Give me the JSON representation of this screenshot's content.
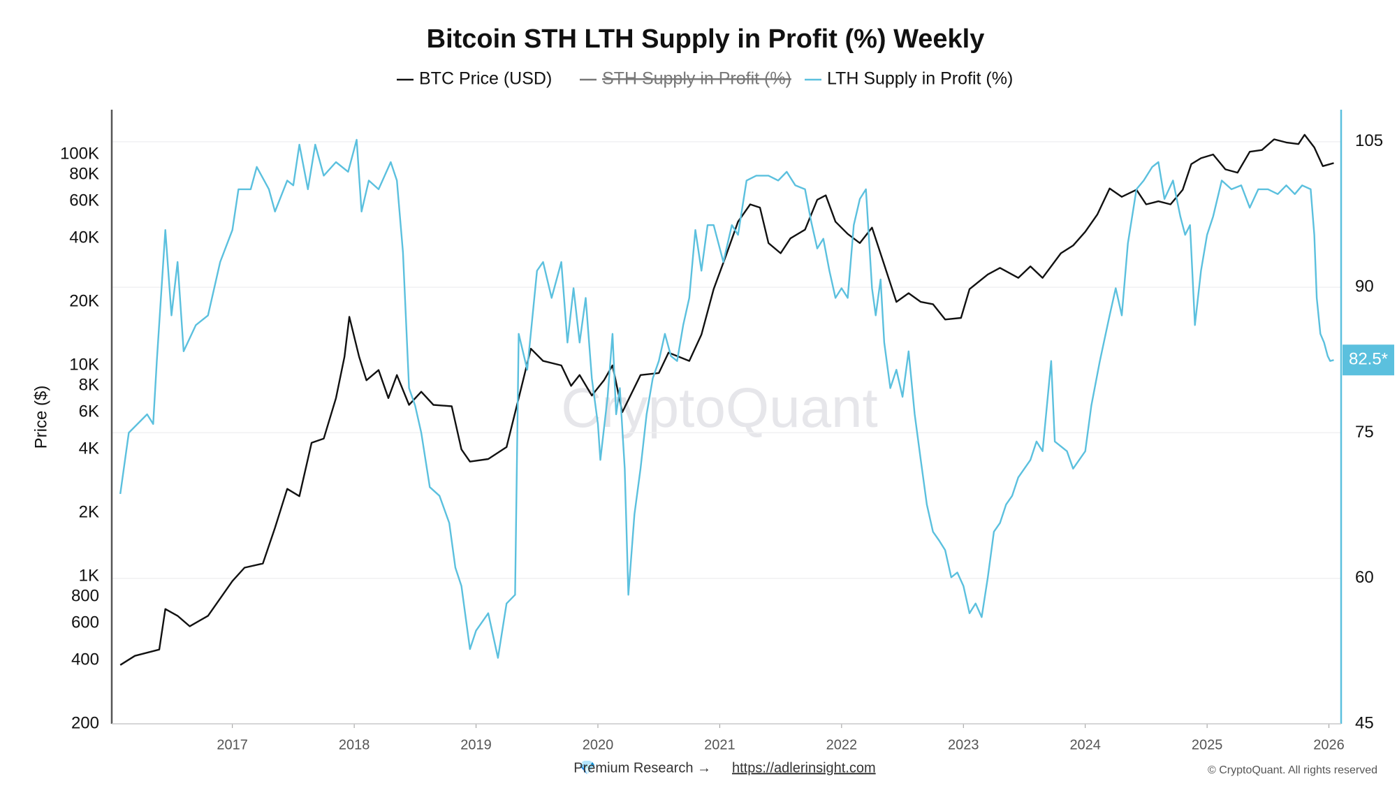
{
  "chart_data": {
    "type": "line",
    "title": "Bitcoin STH LTH Supply in Profit (%) Weekly",
    "ylabel": "Price ($)",
    "watermark": "CryptoQuant",
    "footer": {
      "text": "Premium Research →",
      "link": "https://adlerinsight.com",
      "copyright": "© CryptoQuant. All rights reserved"
    },
    "log_y": true,
    "grid": true,
    "xlim": [
      2016.01,
      2026.1
    ],
    "xticks": [
      2017,
      2018,
      2019,
      2020,
      2021,
      2022,
      2023,
      2024,
      2025,
      2026
    ],
    "ylim": [
      200,
      163000
    ],
    "yticks": [
      {
        "value": 200,
        "label": "200"
      },
      {
        "value": 400,
        "label": "400"
      },
      {
        "value": 600,
        "label": "600"
      },
      {
        "value": 800,
        "label": "800"
      },
      {
        "value": 1000,
        "label": "1K"
      },
      {
        "value": 2000,
        "label": "2K"
      },
      {
        "value": 4000,
        "label": "4K"
      },
      {
        "value": 6000,
        "label": "6K"
      },
      {
        "value": 8000,
        "label": "8K"
      },
      {
        "value": 10000,
        "label": "10K"
      },
      {
        "value": 20000,
        "label": "20K"
      },
      {
        "value": 40000,
        "label": "40K"
      },
      {
        "value": 60000,
        "label": "60K"
      },
      {
        "value": 80000,
        "label": "80K"
      },
      {
        "value": 100000,
        "label": "100K"
      }
    ],
    "y2lim": [
      45,
      108.3
    ],
    "y2ticks": [
      45,
      60,
      75,
      90,
      105
    ],
    "hidden_series": [
      {
        "name": "STH Supply in Profit (%)",
        "color": "#777777"
      }
    ],
    "series": [
      {
        "name": "BTC Price (USD)",
        "color": "#111111",
        "x": [
          2016.08,
          2016.2,
          2016.4,
          2016.45,
          2016.55,
          2016.65,
          2016.8,
          2017.0,
          2017.1,
          2017.25,
          2017.35,
          2017.45,
          2017.55,
          2017.65,
          2017.75,
          2017.85,
          2017.92,
          2017.96,
          2018.04,
          2018.1,
          2018.2,
          2018.28,
          2018.35,
          2018.45,
          2018.55,
          2018.65,
          2018.8,
          2018.88,
          2018.95,
          2019.1,
          2019.25,
          2019.35,
          2019.45,
          2019.55,
          2019.7,
          2019.78,
          2019.85,
          2019.95,
          2020.05,
          2020.12,
          2020.2,
          2020.35,
          2020.5,
          2020.58,
          2020.75,
          2020.85,
          2020.95,
          2021.05,
          2021.15,
          2021.25,
          2021.33,
          2021.4,
          2021.5,
          2021.58,
          2021.7,
          2021.8,
          2021.87,
          2021.95,
          2022.05,
          2022.15,
          2022.25,
          2022.35,
          2022.45,
          2022.55,
          2022.65,
          2022.75,
          2022.85,
          2022.98,
          2023.05,
          2023.2,
          2023.3,
          2023.45,
          2023.55,
          2023.65,
          2023.8,
          2023.9,
          2024.0,
          2024.1,
          2024.2,
          2024.3,
          2024.42,
          2024.5,
          2024.6,
          2024.7,
          2024.8,
          2024.87,
          2024.95,
          2025.05,
          2025.15,
          2025.25,
          2025.35,
          2025.45,
          2025.55,
          2025.65,
          2025.75,
          2025.8,
          2025.88,
          2025.95,
          2026.04
        ],
        "values": [
          380,
          420,
          450,
          700,
          650,
          580,
          650,
          950,
          1100,
          1150,
          1700,
          2600,
          2400,
          4300,
          4500,
          7000,
          11000,
          17000,
          11000,
          8500,
          9500,
          7000,
          9000,
          6500,
          7500,
          6500,
          6400,
          4000,
          3500,
          3600,
          4100,
          7000,
          12000,
          10500,
          10000,
          8000,
          9000,
          7200,
          8500,
          10000,
          6000,
          9000,
          9200,
          11500,
          10500,
          14000,
          23000,
          33000,
          48000,
          58000,
          56000,
          38000,
          34000,
          40000,
          44000,
          61000,
          64000,
          48000,
          42000,
          38000,
          45000,
          30000,
          20000,
          22000,
          20000,
          19500,
          16500,
          16800,
          23000,
          27000,
          29000,
          26000,
          29500,
          26000,
          34000,
          37000,
          43000,
          52000,
          69000,
          63000,
          68000,
          58000,
          60000,
          58000,
          68000,
          90000,
          96000,
          100000,
          85000,
          82000,
          103000,
          105000,
          118000,
          114000,
          112000,
          124000,
          108000,
          88000,
          91000
        ]
      },
      {
        "name": "LTH Supply in Profit (%)",
        "color": "#5bc0de",
        "axis": "y2",
        "last_label": "82.5*",
        "x": [
          2016.08,
          2016.15,
          2016.3,
          2016.35,
          2016.38,
          2016.45,
          2016.5,
          2016.55,
          2016.6,
          2016.7,
          2016.8,
          2016.9,
          2017.0,
          2017.05,
          2017.15,
          2017.2,
          2017.3,
          2017.35,
          2017.45,
          2017.5,
          2017.55,
          2017.62,
          2017.68,
          2017.75,
          2017.85,
          2017.95,
          2018.02,
          2018.06,
          2018.12,
          2018.2,
          2018.3,
          2018.35,
          2018.4,
          2018.45,
          2018.5,
          2018.55,
          2018.62,
          2018.7,
          2018.78,
          2018.83,
          2018.88,
          2018.95,
          2019.0,
          2019.1,
          2019.18,
          2019.25,
          2019.32,
          2019.35,
          2019.42,
          2019.5,
          2019.55,
          2019.62,
          2019.7,
          2019.75,
          2019.8,
          2019.85,
          2019.9,
          2019.95,
          2020.0,
          2020.02,
          2020.08,
          2020.12,
          2020.15,
          2020.18,
          2020.22,
          2020.25,
          2020.3,
          2020.35,
          2020.4,
          2020.45,
          2020.5,
          2020.55,
          2020.6,
          2020.65,
          2020.7,
          2020.75,
          2020.8,
          2020.85,
          2020.9,
          2020.95,
          2021.03,
          2021.1,
          2021.15,
          2021.22,
          2021.3,
          2021.4,
          2021.48,
          2021.55,
          2021.62,
          2021.7,
          2021.75,
          2021.8,
          2021.85,
          2021.9,
          2021.95,
          2022.0,
          2022.05,
          2022.1,
          2022.15,
          2022.2,
          2022.25,
          2022.28,
          2022.32,
          2022.35,
          2022.4,
          2022.45,
          2022.5,
          2022.55,
          2022.6,
          2022.65,
          2022.7,
          2022.75,
          2022.8,
          2022.85,
          2022.9,
          2022.95,
          2023.0,
          2023.05,
          2023.1,
          2023.15,
          2023.2,
          2023.25,
          2023.3,
          2023.35,
          2023.4,
          2023.45,
          2023.5,
          2023.55,
          2023.6,
          2023.65,
          2023.72,
          2023.75,
          2023.85,
          2023.9,
          2024.0,
          2024.05,
          2024.12,
          2024.2,
          2024.25,
          2024.3,
          2024.35,
          2024.42,
          2024.48,
          2024.55,
          2024.6,
          2024.65,
          2024.72,
          2024.78,
          2024.82,
          2024.86,
          2024.9,
          2024.95,
          2025.0,
          2025.05,
          2025.12,
          2025.2,
          2025.28,
          2025.35,
          2025.42,
          2025.5,
          2025.58,
          2025.65,
          2025.72,
          2025.78,
          2025.85,
          2025.88,
          2025.9,
          2025.93,
          2025.96,
          2025.99,
          2026.01,
          2026.04
        ],
        "values": [
          68.7,
          75.0,
          76.9,
          75.9,
          82.4,
          95.9,
          87.1,
          92.6,
          83.4,
          86.1,
          87.1,
          92.6,
          95.9,
          100.1,
          100.1,
          102.4,
          100.1,
          97.8,
          101.0,
          100.5,
          104.7,
          100.1,
          104.7,
          101.5,
          102.9,
          101.9,
          105.2,
          97.8,
          101.0,
          100.1,
          102.9,
          101.0,
          93.6,
          79.6,
          77.8,
          75.0,
          69.4,
          68.5,
          65.7,
          61.1,
          59.2,
          52.7,
          54.6,
          56.4,
          51.8,
          57.4,
          58.3,
          85.2,
          81.5,
          91.7,
          92.6,
          88.9,
          92.6,
          84.3,
          89.9,
          84.3,
          88.9,
          80.6,
          75.9,
          72.2,
          78.7,
          85.2,
          76.9,
          79.6,
          71.3,
          58.3,
          66.6,
          71.3,
          76.9,
          80.6,
          82.4,
          85.2,
          82.9,
          82.4,
          86.1,
          88.9,
          95.9,
          91.7,
          96.4,
          96.4,
          92.6,
          96.4,
          95.4,
          101.0,
          101.5,
          101.5,
          101.0,
          101.9,
          100.5,
          100.1,
          96.8,
          94.0,
          95.0,
          91.7,
          88.9,
          89.9,
          88.9,
          96.4,
          99.1,
          100.1,
          89.9,
          87.1,
          90.8,
          84.3,
          79.6,
          81.5,
          78.7,
          83.4,
          76.9,
          72.2,
          67.6,
          64.8,
          63.9,
          62.9,
          60.1,
          60.6,
          59.2,
          56.4,
          57.4,
          56.0,
          60.1,
          64.8,
          65.7,
          67.6,
          68.5,
          70.4,
          71.3,
          72.2,
          74.1,
          73.1,
          82.4,
          74.1,
          73.1,
          71.3,
          73.1,
          77.8,
          82.4,
          87.1,
          89.9,
          87.1,
          94.5,
          100.1,
          101.0,
          102.4,
          102.9,
          99.1,
          101.0,
          97.3,
          95.4,
          96.4,
          86.1,
          91.7,
          95.4,
          97.3,
          101.0,
          100.1,
          100.5,
          98.2,
          100.1,
          100.1,
          99.6,
          100.5,
          99.6,
          100.5,
          100.1,
          95.4,
          88.9,
          85.2,
          84.3,
          82.9,
          82.4,
          82.5
        ]
      }
    ]
  }
}
